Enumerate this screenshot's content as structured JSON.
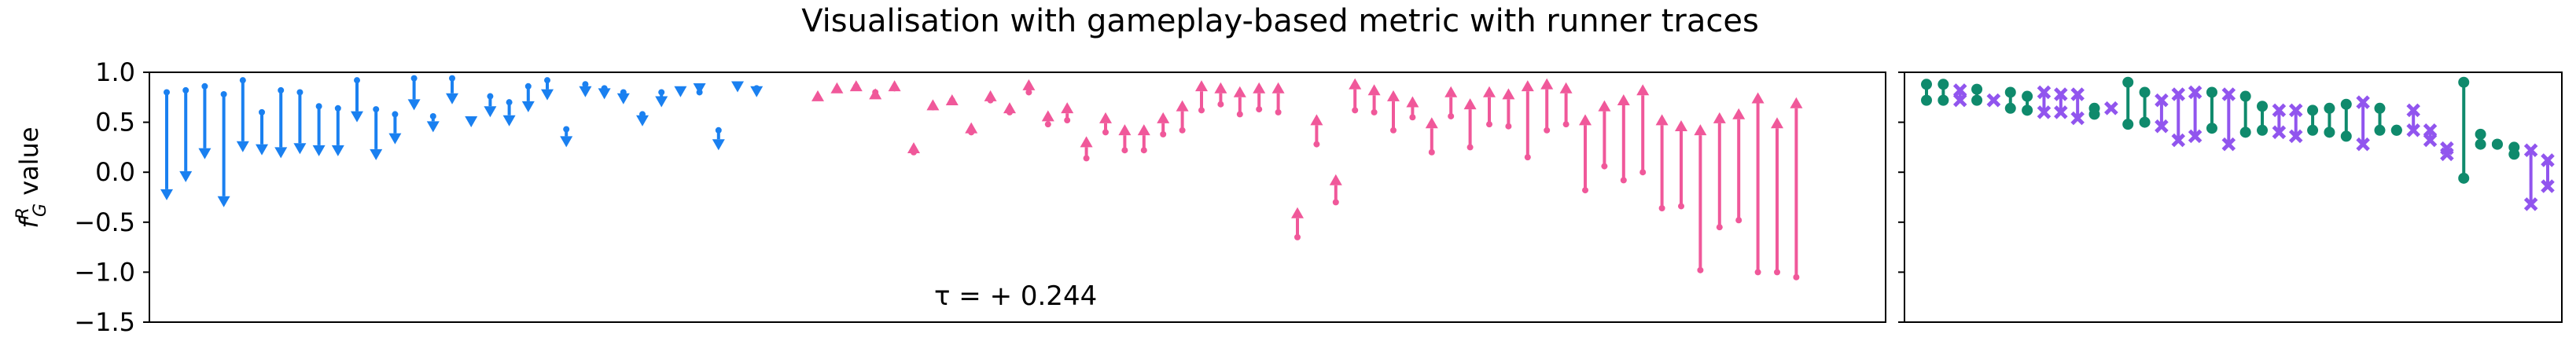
{
  "chart_data": {
    "type": "scatter",
    "title": "Visualisation with gameplay-based metric with runner traces",
    "ylabel_main": "f",
    "ylabel_sub": "G",
    "ylabel_sup": "R",
    "ylabel_rest": " value",
    "ylim": [
      -1.5,
      1.0
    ],
    "yticks": [
      "1.0",
      "0.5",
      "0.0",
      "−0.5",
      "−1.0",
      "−1.5"
    ],
    "grid": false,
    "annotation": "τ = + 0.244",
    "colors": {
      "decrease": "#1a80f0",
      "increase": "#f0589a",
      "green": "#0f8a6c",
      "purple": "#9155ee"
    },
    "left_panel": {
      "description_free": true,
      "arrows": [
        [
          0.8,
          -0.28
        ],
        [
          0.82,
          -0.1
        ],
        [
          0.86,
          0.13
        ],
        [
          0.78,
          -0.35
        ],
        [
          0.92,
          0.2
        ],
        [
          0.6,
          0.17
        ],
        [
          0.82,
          0.14
        ],
        [
          0.8,
          0.18
        ],
        [
          0.66,
          0.16
        ],
        [
          0.64,
          0.16
        ],
        [
          0.92,
          0.5
        ],
        [
          0.63,
          0.12
        ],
        [
          0.58,
          0.28
        ],
        [
          0.94,
          0.62
        ],
        [
          0.56,
          0.4
        ],
        [
          0.94,
          0.68
        ],
        [
          0.52,
          0.45
        ],
        [
          0.76,
          0.55
        ],
        [
          0.7,
          0.46
        ],
        [
          0.86,
          0.6
        ],
        [
          0.92,
          0.72
        ],
        [
          0.43,
          0.25
        ],
        [
          0.88,
          0.75
        ],
        [
          0.84,
          0.73
        ],
        [
          0.8,
          0.68
        ],
        [
          0.58,
          0.46
        ],
        [
          0.8,
          0.65
        ],
        [
          0.82,
          0.75
        ],
        [
          0.8,
          0.78
        ],
        [
          0.42,
          0.22
        ],
        [
          0.87,
          0.8
        ],
        [
          0.84,
          0.75
        ]
      ]
    },
    "mid_panel": {
      "arrows": [
        [
          0.75,
          0.82
        ],
        [
          0.83,
          0.9
        ],
        [
          0.86,
          0.92
        ],
        [
          0.8,
          0.84
        ],
        [
          0.84,
          0.92
        ],
        [
          0.2,
          0.3
        ],
        [
          0.65,
          0.73
        ],
        [
          0.72,
          0.78
        ],
        [
          0.4,
          0.5
        ],
        [
          0.72,
          0.82
        ],
        [
          0.6,
          0.7
        ],
        [
          0.8,
          0.93
        ],
        [
          0.48,
          0.62
        ],
        [
          0.52,
          0.7
        ],
        [
          0.14,
          0.36
        ],
        [
          0.4,
          0.6
        ],
        [
          0.22,
          0.48
        ],
        [
          0.22,
          0.48
        ],
        [
          0.38,
          0.6
        ],
        [
          0.42,
          0.72
        ],
        [
          0.62,
          0.92
        ],
        [
          0.68,
          0.9
        ],
        [
          0.58,
          0.86
        ],
        [
          0.63,
          0.9
        ],
        [
          0.6,
          0.9
        ],
        [
          -0.65,
          -0.35
        ],
        [
          0.28,
          0.58
        ],
        [
          -0.3,
          -0.02
        ],
        [
          0.62,
          0.94
        ],
        [
          0.6,
          0.88
        ],
        [
          0.42,
          0.82
        ],
        [
          0.55,
          0.76
        ],
        [
          0.2,
          0.55
        ],
        [
          0.56,
          0.86
        ],
        [
          0.25,
          0.74
        ],
        [
          0.48,
          0.86
        ],
        [
          0.46,
          0.84
        ],
        [
          0.15,
          0.92
        ],
        [
          0.42,
          0.94
        ],
        [
          0.48,
          0.9
        ],
        [
          -0.18,
          0.58
        ],
        [
          0.06,
          0.72
        ],
        [
          -0.08,
          0.78
        ],
        [
          0.0,
          0.88
        ],
        [
          -0.36,
          0.58
        ],
        [
          -0.34,
          0.52
        ],
        [
          -0.98,
          0.48
        ],
        [
          -0.55,
          0.6
        ],
        [
          -0.48,
          0.64
        ],
        [
          -1.0,
          0.8
        ],
        [
          -1.0,
          0.55
        ],
        [
          -1.05,
          0.75
        ]
      ]
    },
    "right_panel": {
      "green_pairs": [
        [
          0.88,
          0.72
        ],
        [
          0.88,
          0.72
        ],
        [
          0.83,
          0.72
        ],
        [
          0.8,
          0.64
        ],
        [
          0.76,
          0.62
        ],
        [
          0.64,
          0.58
        ],
        [
          0.9,
          0.48
        ],
        [
          0.8,
          0.5
        ],
        [
          0.8,
          0.44
        ],
        [
          0.76,
          0.4
        ],
        [
          0.66,
          0.42
        ],
        [
          0.62,
          0.42
        ],
        [
          0.64,
          0.4
        ],
        [
          0.68,
          0.36
        ],
        [
          0.64,
          0.42
        ],
        [
          0.42,
          0.42
        ],
        [
          0.9,
          -0.06
        ],
        [
          0.38,
          0.28
        ],
        [
          0.28,
          0.28
        ],
        [
          0.25,
          0.18
        ]
      ],
      "purple_pairs": [
        [
          0.82,
          0.72
        ],
        [
          0.72,
          0.72
        ],
        [
          0.8,
          0.6
        ],
        [
          0.78,
          0.6
        ],
        [
          0.78,
          0.54
        ],
        [
          0.64,
          0.64
        ],
        [
          0.72,
          0.46
        ],
        [
          0.78,
          0.32
        ],
        [
          0.8,
          0.36
        ],
        [
          0.78,
          0.28
        ],
        [
          0.62,
          0.4
        ],
        [
          0.62,
          0.36
        ],
        [
          0.7,
          0.28
        ],
        [
          0.62,
          0.42
        ],
        [
          0.42,
          0.32
        ],
        [
          0.24,
          0.18
        ],
        [
          0.22,
          -0.32
        ],
        [
          0.12,
          -0.14
        ]
      ]
    }
  }
}
